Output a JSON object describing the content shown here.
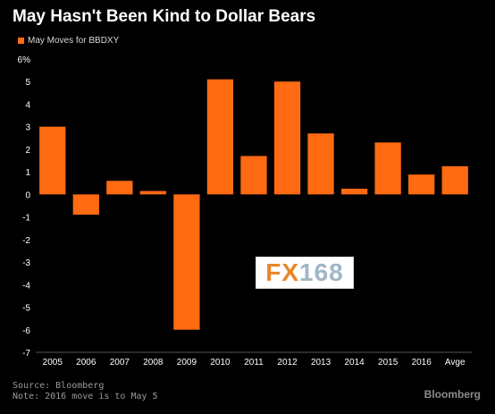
{
  "header": {
    "title": "May Hasn't Been Kind to Dollar Bears"
  },
  "legend": {
    "label": "May Moves for BBDXY"
  },
  "footer": {
    "source": "Source: Bloomberg",
    "note": "Note: 2016 move is to May 5",
    "brand": "Bloomberg"
  },
  "watermark": {
    "text": "FX168"
  },
  "colors": {
    "bar": "#ff6a13",
    "background": "#000000",
    "axis_text": "#ffffff"
  },
  "chart_data": {
    "type": "bar",
    "title": "May Hasn't Been Kind to Dollar Bears",
    "xlabel": "",
    "ylabel": "%",
    "categories": [
      "2005",
      "2006",
      "2007",
      "2008",
      "2009",
      "2010",
      "2011",
      "2012",
      "2013",
      "2014",
      "2015",
      "2016",
      "Avge"
    ],
    "series": [
      {
        "name": "May Moves for BBDXY",
        "values": [
          3.0,
          -0.9,
          0.6,
          0.15,
          -6.0,
          5.1,
          1.7,
          5.0,
          2.7,
          0.25,
          2.3,
          0.88,
          1.25
        ]
      }
    ],
    "ylim": [
      -7,
      6
    ],
    "yticks": [
      "-7",
      "-6",
      "-5",
      "-4",
      "-3",
      "-2",
      "-1",
      "0",
      "1",
      "2",
      "3",
      "4",
      "5",
      "6%"
    ],
    "grid": false,
    "legend_position": "top-left"
  }
}
